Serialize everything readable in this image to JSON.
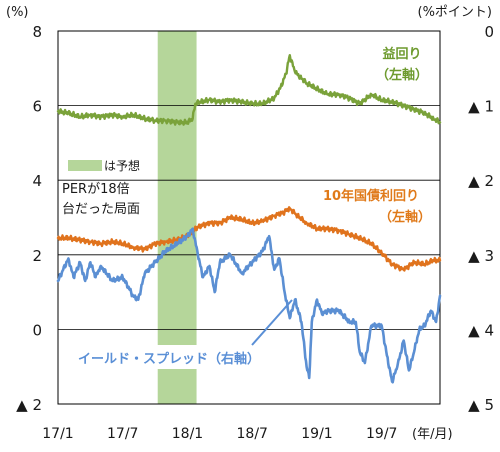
{
  "chart_data": {
    "type": "line",
    "left_axis": {
      "unit": "(%)",
      "ticks": [
        {
          "v": 8,
          "label": "8"
        },
        {
          "v": 6,
          "label": "6"
        },
        {
          "v": 4,
          "label": "4"
        },
        {
          "v": 2,
          "label": "2"
        },
        {
          "v": 0,
          "label": "0"
        },
        {
          "v": -2,
          "label": "▲ 2"
        }
      ],
      "ylim": [
        -2,
        8
      ]
    },
    "right_axis": {
      "unit": "(%ポイント)",
      "ticks": [
        {
          "v": 0,
          "label": "0"
        },
        {
          "v": -1,
          "label": "▲ 1"
        },
        {
          "v": -2,
          "label": "▲ 2"
        },
        {
          "v": -3,
          "label": "▲ 3"
        },
        {
          "v": -4,
          "label": "▲ 4"
        },
        {
          "v": -5,
          "label": "▲ 5"
        }
      ],
      "ylim": [
        -5,
        0
      ]
    },
    "x_axis": {
      "unit": "(年/月)",
      "ticks": [
        {
          "t": 2017.0,
          "label": "17/1"
        },
        {
          "t": 2017.5,
          "label": "17/7"
        },
        {
          "t": 2018.0,
          "label": "18/1"
        },
        {
          "t": 2018.5,
          "label": "18/7"
        },
        {
          "t": 2019.0,
          "label": "19/1"
        },
        {
          "t": 2019.5,
          "label": "19/7"
        }
      ],
      "xlim": [
        2017.0,
        2019.95
      ]
    },
    "grid": true,
    "shaded_period": {
      "label": "は予想",
      "start": 2017.77,
      "end": 2018.07,
      "color": "#b5d69a"
    },
    "annotation": {
      "lines": [
        "PERが18倍",
        "台だった局面"
      ]
    },
    "series": [
      {
        "name": "益回り（左軸）",
        "label_lines": [
          "益回り",
          "（左軸）"
        ],
        "axis": "left",
        "color": "#7aa23a",
        "label_color": "#6e9b2f",
        "points": [
          [
            2017.0,
            5.85
          ],
          [
            2017.08,
            5.8
          ],
          [
            2017.17,
            5.7
          ],
          [
            2017.25,
            5.75
          ],
          [
            2017.33,
            5.7
          ],
          [
            2017.42,
            5.75
          ],
          [
            2017.5,
            5.7
          ],
          [
            2017.58,
            5.75
          ],
          [
            2017.67,
            5.65
          ],
          [
            2017.75,
            5.6
          ],
          [
            2017.83,
            5.6
          ],
          [
            2017.92,
            5.55
          ],
          [
            2018.0,
            5.55
          ],
          [
            2018.04,
            5.65
          ],
          [
            2018.06,
            6.05
          ],
          [
            2018.1,
            6.1
          ],
          [
            2018.17,
            6.15
          ],
          [
            2018.25,
            6.1
          ],
          [
            2018.33,
            6.15
          ],
          [
            2018.42,
            6.1
          ],
          [
            2018.5,
            6.05
          ],
          [
            2018.58,
            6.05
          ],
          [
            2018.67,
            6.2
          ],
          [
            2018.72,
            6.5
          ],
          [
            2018.76,
            6.85
          ],
          [
            2018.79,
            7.35
          ],
          [
            2018.83,
            6.9
          ],
          [
            2018.92,
            6.6
          ],
          [
            2019.0,
            6.45
          ],
          [
            2019.08,
            6.3
          ],
          [
            2019.17,
            6.3
          ],
          [
            2019.25,
            6.2
          ],
          [
            2019.33,
            6.05
          ],
          [
            2019.42,
            6.3
          ],
          [
            2019.5,
            6.15
          ],
          [
            2019.58,
            6.1
          ],
          [
            2019.67,
            6.0
          ],
          [
            2019.75,
            5.9
          ],
          [
            2019.83,
            5.8
          ],
          [
            2019.9,
            5.65
          ],
          [
            2019.95,
            5.55
          ]
        ]
      },
      {
        "name": "10年国債利回り（左軸）",
        "label_lines": [
          "10年国債利回り",
          "（左軸）"
        ],
        "axis": "left",
        "color": "#e0731d",
        "label_color": "#e07a1a",
        "points": [
          [
            2017.0,
            2.45
          ],
          [
            2017.08,
            2.45
          ],
          [
            2017.17,
            2.4
          ],
          [
            2017.25,
            2.35
          ],
          [
            2017.33,
            2.3
          ],
          [
            2017.42,
            2.35
          ],
          [
            2017.5,
            2.3
          ],
          [
            2017.58,
            2.2
          ],
          [
            2017.67,
            2.15
          ],
          [
            2017.75,
            2.3
          ],
          [
            2017.83,
            2.35
          ],
          [
            2017.92,
            2.4
          ],
          [
            2018.0,
            2.5
          ],
          [
            2018.08,
            2.75
          ],
          [
            2018.17,
            2.85
          ],
          [
            2018.25,
            2.85
          ],
          [
            2018.33,
            3.0
          ],
          [
            2018.42,
            2.95
          ],
          [
            2018.5,
            2.85
          ],
          [
            2018.58,
            2.9
          ],
          [
            2018.67,
            3.05
          ],
          [
            2018.75,
            3.15
          ],
          [
            2018.79,
            3.25
          ],
          [
            2018.83,
            3.1
          ],
          [
            2018.92,
            2.85
          ],
          [
            2019.0,
            2.7
          ],
          [
            2019.08,
            2.7
          ],
          [
            2019.17,
            2.65
          ],
          [
            2019.25,
            2.55
          ],
          [
            2019.33,
            2.45
          ],
          [
            2019.42,
            2.3
          ],
          [
            2019.5,
            2.05
          ],
          [
            2019.58,
            1.75
          ],
          [
            2019.67,
            1.6
          ],
          [
            2019.75,
            1.8
          ],
          [
            2019.83,
            1.75
          ],
          [
            2019.9,
            1.85
          ],
          [
            2019.95,
            1.85
          ]
        ]
      },
      {
        "name": "イールド・スプレッド（右軸）",
        "label_lines": [
          "イールド・スプレッド（右軸）"
        ],
        "axis": "right",
        "color": "#5b8fd3",
        "label_color": "#5a8fd6",
        "points": [
          [
            2017.0,
            -3.35
          ],
          [
            2017.04,
            -3.2
          ],
          [
            2017.08,
            -3.05
          ],
          [
            2017.12,
            -3.3
          ],
          [
            2017.17,
            -3.1
          ],
          [
            2017.21,
            -3.35
          ],
          [
            2017.25,
            -3.1
          ],
          [
            2017.29,
            -3.3
          ],
          [
            2017.33,
            -3.15
          ],
          [
            2017.42,
            -3.35
          ],
          [
            2017.5,
            -3.3
          ],
          [
            2017.58,
            -3.55
          ],
          [
            2017.62,
            -3.6
          ],
          [
            2017.67,
            -3.25
          ],
          [
            2017.75,
            -3.1
          ],
          [
            2017.83,
            -2.95
          ],
          [
            2017.92,
            -2.85
          ],
          [
            2018.0,
            -2.75
          ],
          [
            2018.04,
            -2.65
          ],
          [
            2018.08,
            -3.0
          ],
          [
            2018.12,
            -3.3
          ],
          [
            2018.17,
            -3.15
          ],
          [
            2018.21,
            -3.5
          ],
          [
            2018.25,
            -3.1
          ],
          [
            2018.33,
            -3.0
          ],
          [
            2018.42,
            -3.25
          ],
          [
            2018.5,
            -3.1
          ],
          [
            2018.58,
            -2.95
          ],
          [
            2018.63,
            -2.75
          ],
          [
            2018.67,
            -3.2
          ],
          [
            2018.71,
            -3.05
          ],
          [
            2018.75,
            -3.5
          ],
          [
            2018.79,
            -3.85
          ],
          [
            2018.83,
            -3.6
          ],
          [
            2018.88,
            -3.9
          ],
          [
            2018.92,
            -4.5
          ],
          [
            2018.94,
            -4.65
          ],
          [
            2018.96,
            -3.9
          ],
          [
            2019.0,
            -3.6
          ],
          [
            2019.04,
            -3.8
          ],
          [
            2019.08,
            -3.75
          ],
          [
            2019.17,
            -3.75
          ],
          [
            2019.25,
            -3.9
          ],
          [
            2019.3,
            -3.9
          ],
          [
            2019.33,
            -4.3
          ],
          [
            2019.37,
            -4.45
          ],
          [
            2019.42,
            -3.95
          ],
          [
            2019.5,
            -3.95
          ],
          [
            2019.54,
            -4.35
          ],
          [
            2019.58,
            -4.7
          ],
          [
            2019.62,
            -4.5
          ],
          [
            2019.67,
            -4.15
          ],
          [
            2019.71,
            -4.55
          ],
          [
            2019.75,
            -4.3
          ],
          [
            2019.79,
            -4.0
          ],
          [
            2019.83,
            -3.95
          ],
          [
            2019.88,
            -3.75
          ],
          [
            2019.92,
            -3.9
          ],
          [
            2019.95,
            -3.55
          ]
        ]
      }
    ]
  }
}
